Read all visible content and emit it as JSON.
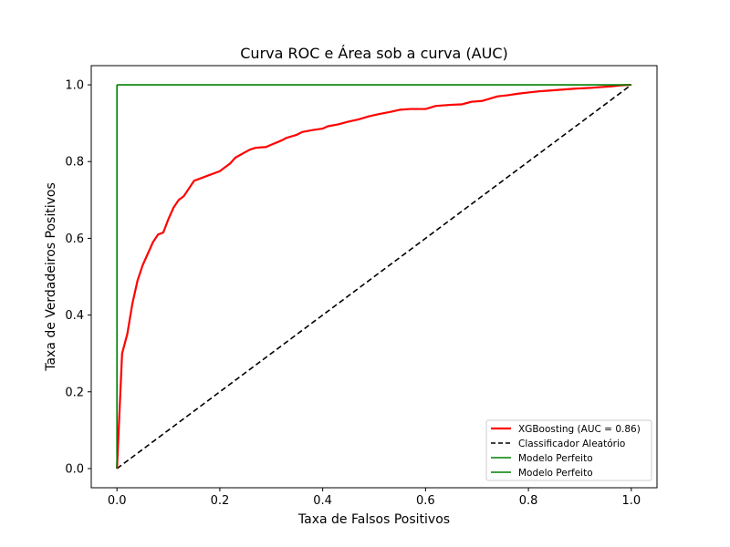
{
  "chart_data": {
    "type": "line",
    "title": "Curva ROC e Área sob a curva (AUC)",
    "xlabel": "Taxa de Falsos Positivos",
    "ylabel": "Taxa de Verdadeiros Positivos",
    "xlim": [
      -0.05,
      1.05
    ],
    "ylim": [
      -0.05,
      1.05
    ],
    "xticks": [
      "0.0",
      "0.2",
      "0.4",
      "0.6",
      "0.8",
      "1.0"
    ],
    "yticks": [
      "0.0",
      "0.2",
      "0.4",
      "0.6",
      "0.8",
      "1.0"
    ],
    "grid": false,
    "legend_position": "lower-right",
    "series": [
      {
        "name": "XGBoosting (AUC = 0.86)",
        "color": "#ff0000",
        "style": "solid",
        "points": [
          [
            0.0,
            0.0
          ],
          [
            0.005,
            0.15
          ],
          [
            0.01,
            0.3
          ],
          [
            0.02,
            0.35
          ],
          [
            0.03,
            0.43
          ],
          [
            0.04,
            0.49
          ],
          [
            0.05,
            0.53
          ],
          [
            0.06,
            0.56
          ],
          [
            0.07,
            0.59
          ],
          [
            0.08,
            0.61
          ],
          [
            0.09,
            0.615
          ],
          [
            0.1,
            0.65
          ],
          [
            0.11,
            0.68
          ],
          [
            0.12,
            0.7
          ],
          [
            0.13,
            0.71
          ],
          [
            0.14,
            0.73
          ],
          [
            0.15,
            0.75
          ],
          [
            0.16,
            0.755
          ],
          [
            0.18,
            0.765
          ],
          [
            0.19,
            0.77
          ],
          [
            0.2,
            0.775
          ],
          [
            0.21,
            0.785
          ],
          [
            0.22,
            0.795
          ],
          [
            0.23,
            0.81
          ],
          [
            0.25,
            0.825
          ],
          [
            0.26,
            0.832
          ],
          [
            0.27,
            0.836
          ],
          [
            0.29,
            0.838
          ],
          [
            0.3,
            0.844
          ],
          [
            0.32,
            0.855
          ],
          [
            0.33,
            0.862
          ],
          [
            0.35,
            0.87
          ],
          [
            0.36,
            0.877
          ],
          [
            0.38,
            0.882
          ],
          [
            0.4,
            0.886
          ],
          [
            0.41,
            0.892
          ],
          [
            0.43,
            0.897
          ],
          [
            0.45,
            0.904
          ],
          [
            0.47,
            0.91
          ],
          [
            0.49,
            0.918
          ],
          [
            0.51,
            0.924
          ],
          [
            0.53,
            0.929
          ],
          [
            0.55,
            0.935
          ],
          [
            0.57,
            0.937
          ],
          [
            0.6,
            0.937
          ],
          [
            0.62,
            0.945
          ],
          [
            0.65,
            0.948
          ],
          [
            0.67,
            0.949
          ],
          [
            0.69,
            0.956
          ],
          [
            0.71,
            0.958
          ],
          [
            0.72,
            0.962
          ],
          [
            0.74,
            0.97
          ],
          [
            0.76,
            0.973
          ],
          [
            0.78,
            0.977
          ],
          [
            0.8,
            0.98
          ],
          [
            0.82,
            0.983
          ],
          [
            0.84,
            0.985
          ],
          [
            0.87,
            0.988
          ],
          [
            0.89,
            0.99
          ],
          [
            0.92,
            0.992
          ],
          [
            0.94,
            0.994
          ],
          [
            0.96,
            0.996
          ],
          [
            0.98,
            0.999
          ],
          [
            1.0,
            1.0
          ]
        ]
      },
      {
        "name": "Classificador Aleatório",
        "color": "#000000",
        "style": "dashed",
        "points": [
          [
            0.0,
            0.0
          ],
          [
            1.0,
            1.0
          ]
        ]
      },
      {
        "name": "Modelo Perfeito",
        "color": "#008000",
        "style": "solid",
        "points": [
          [
            0.0,
            0.0
          ],
          [
            0.0,
            1.0
          ]
        ]
      },
      {
        "name": "Modelo Perfeito",
        "color": "#008000",
        "style": "solid",
        "points": [
          [
            0.0,
            1.0
          ],
          [
            1.0,
            1.0
          ]
        ]
      }
    ]
  }
}
